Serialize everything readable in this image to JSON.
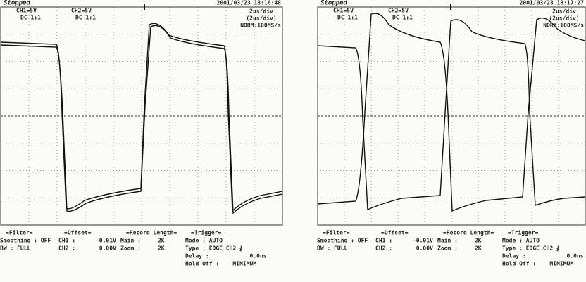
{
  "panels": [
    {
      "status": "Stopped",
      "ch1": "CH1=5V",
      "ch1_coupling": "DC 1:1",
      "ch2": "CH2=5V",
      "ch2_coupling": "DC 1:1",
      "timestamp": "2001/03/23 18:16:48",
      "timebase": "2us/div",
      "timebase_note": "(2us/div)",
      "sampling": "NORM:100MS/s",
      "footer": [
        [
          "=Filter=",
          "Smoothing : OFF",
          "BW : FULL"
        ],
        [
          "=Offset=",
          "CH1 :      -0.01V",
          "CH2 :       0.00V"
        ],
        [
          "=Record Length=",
          "Main :     2K",
          "Zoom :     2K"
        ],
        [
          "=Trigger=",
          "Mode : AUTO",
          "Type : EDGE CH2 ∮",
          "Delay :            0.0ns",
          "Hold Off :    MINIMUM"
        ]
      ]
    },
    {
      "status": "Stopped",
      "ch1": "CH1=5V",
      "ch1_coupling": "DC 1:1",
      "ch2": "CH2=5V",
      "ch2_coupling": "DC 1:1",
      "timestamp": "2001/03/23 18:17:27",
      "timebase": "2us/div",
      "timebase_note": "(2us/div)",
      "sampling": "NORM:100MS/s",
      "footer": [
        [
          "=Filter=",
          "Smoothing : OFF",
          "BW : FULL"
        ],
        [
          "=Offset=",
          "CH1 :      -0.01V",
          "CH2 :       0.00V"
        ],
        [
          "=Record Length=",
          "Main :     2K",
          "Zoom :     2K"
        ],
        [
          "=Trigger=",
          "Mode : AUTO",
          "Type : EDGE CH2 ∮",
          "Delay :            0.0ns",
          "Hold Off :    MINIMUM"
        ]
      ]
    }
  ]
}
